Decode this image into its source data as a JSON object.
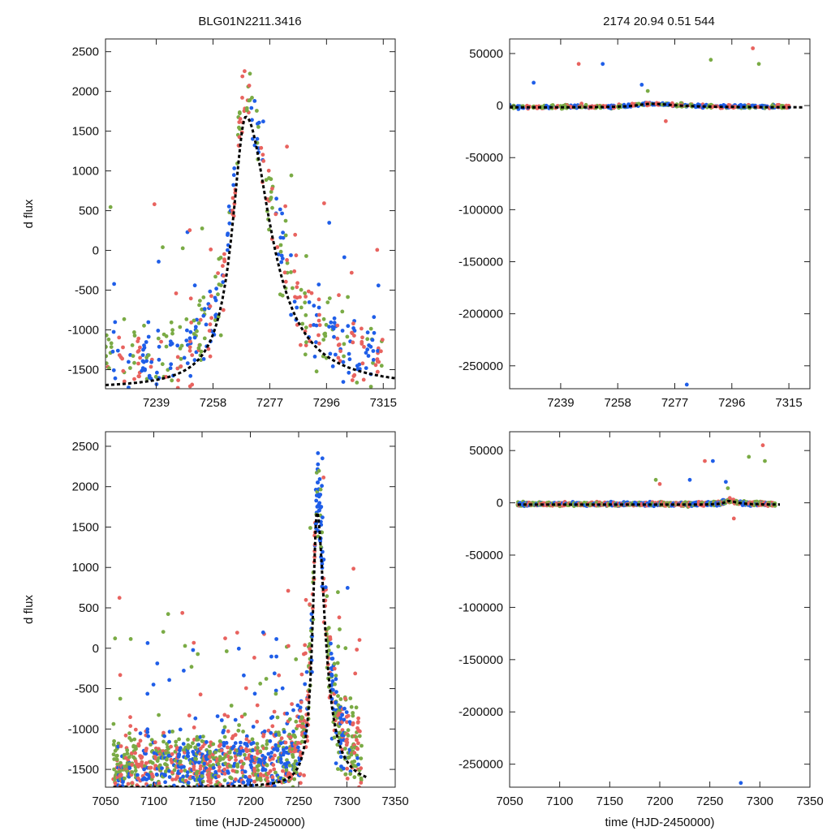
{
  "figure": {
    "title_left": "BLG01N2211.3416",
    "title_right": "2174  20.94  0.51  544"
  },
  "colors": {
    "series_a": "#e8635f",
    "series_b": "#1f5ee8",
    "series_c": "#7aab45",
    "model": "#000000"
  },
  "chart_data": [
    {
      "id": "top-left",
      "type": "scatter",
      "title": "",
      "xlabel": "",
      "ylabel": "d flux",
      "xlim": [
        7222,
        7319
      ],
      "ylim": [
        -1740,
        2660
      ],
      "xticks": [
        7239,
        7258,
        7277,
        7296,
        7315
      ],
      "yticks": [
        2500,
        2000,
        1500,
        1000,
        500,
        0,
        -500,
        -1000,
        -1500
      ],
      "model": {
        "peak_t": 7269,
        "peak_flux": 1680,
        "baseline": -1740,
        "rise_width": 5.5,
        "decay_width": 10
      },
      "series": [
        {
          "name": "series_a",
          "color": "#e8635f"
        },
        {
          "name": "series_b",
          "color": "#1f5ee8"
        },
        {
          "name": "series_c",
          "color": "#7aab45"
        }
      ]
    },
    {
      "id": "top-right",
      "type": "scatter",
      "title": "",
      "xlabel": "",
      "ylabel": "",
      "xlim": [
        7222,
        7322
      ],
      "ylim": [
        -272000,
        64000
      ],
      "xticks": [
        7239,
        7258,
        7277,
        7296,
        7315
      ],
      "yticks": [
        50000,
        0,
        -50000,
        -100000,
        -150000,
        -200000,
        -250000
      ],
      "model": {
        "peak_t": 7269,
        "peak_flux": 1680,
        "baseline": -1740,
        "rise_width": 5.5,
        "decay_width": 10
      },
      "series": [
        {
          "name": "series_a",
          "color": "#e8635f"
        },
        {
          "name": "series_b",
          "color": "#1f5ee8"
        },
        {
          "name": "series_c",
          "color": "#7aab45"
        }
      ]
    },
    {
      "id": "bottom-left",
      "type": "scatter",
      "title": "",
      "xlabel": "time (HJD-2450000)",
      "ylabel": "d flux",
      "xlim": [
        7050,
        7350
      ],
      "ylim": [
        -1720,
        2680
      ],
      "xticks": [
        7050,
        7100,
        7150,
        7200,
        7250,
        7300,
        7350
      ],
      "yticks": [
        2500,
        2000,
        1500,
        1000,
        500,
        0,
        -500,
        -1000,
        -1500
      ],
      "model": {
        "peak_t": 7269,
        "peak_flux": 1680,
        "baseline": -1720,
        "rise_width": 5.5,
        "decay_width": 10
      },
      "series": [
        {
          "name": "series_a",
          "color": "#e8635f"
        },
        {
          "name": "series_b",
          "color": "#1f5ee8"
        },
        {
          "name": "series_c",
          "color": "#7aab45"
        }
      ]
    },
    {
      "id": "bottom-right",
      "type": "scatter",
      "title": "",
      "xlabel": "time (HJD-2450000)",
      "ylabel": "",
      "xlim": [
        7050,
        7350
      ],
      "ylim": [
        -272000,
        68000
      ],
      "xticks": [
        7050,
        7100,
        7150,
        7200,
        7250,
        7300,
        7350
      ],
      "yticks": [
        50000,
        0,
        -50000,
        -100000,
        -150000,
        -200000,
        -250000
      ],
      "model": {
        "peak_t": 7269,
        "peak_flux": 1680,
        "baseline": -1720,
        "rise_width": 5.5,
        "decay_width": 10
      },
      "series": [
        {
          "name": "series_a",
          "color": "#e8635f"
        },
        {
          "name": "series_b",
          "color": "#1f5ee8"
        },
        {
          "name": "series_c",
          "color": "#7aab45"
        }
      ]
    }
  ]
}
